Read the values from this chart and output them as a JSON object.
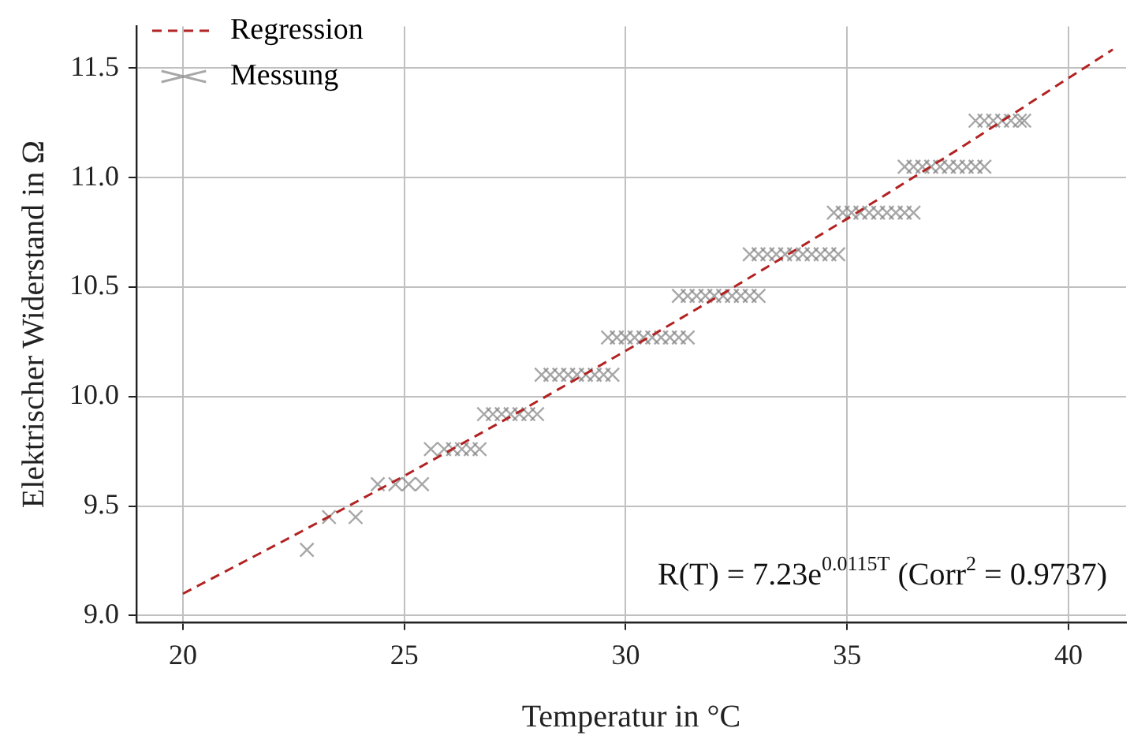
{
  "chart_data": {
    "type": "scatter",
    "xlabel": "Temperatur in °C",
    "ylabel": "Elektrischer Widerstand in Ω",
    "xlim": [
      18.95,
      41.3
    ],
    "ylim": [
      8.97,
      11.69
    ],
    "xticks": [
      20,
      25,
      30,
      35,
      40
    ],
    "yticks": [
      {
        "value": 9,
        "label": "9.0"
      },
      9.5,
      {
        "value": 10,
        "label": "10.0"
      },
      10.5,
      {
        "value": 11,
        "label": "11.0"
      },
      11.5
    ],
    "grid": true,
    "legend": "top left",
    "annotations": [
      "R(T) = 7.23e$^{0.0115T}$ (Corr$^{2}$ = 0.9737)"
    ],
    "series": [
      {
        "name": "Regression",
        "type": "line",
        "color": "#b22222",
        "line_style": "dashed",
        "marker": "none",
        "x": [
          20,
          22.5,
          25,
          27.5,
          30,
          32.5,
          35,
          37.5,
          41
        ],
        "values": [
          9.1,
          9.365,
          9.638,
          9.92,
          10.209,
          10.507,
          10.812,
          11.128,
          11.585
        ]
      },
      {
        "name": "Messung",
        "color": "#808080",
        "marker": "cross",
        "x": [
          22.8,
          23.3,
          23.9,
          24.4,
          24.8,
          25.1,
          25.4,
          25.6,
          25.9,
          26.1,
          26.3,
          26.5,
          26.7,
          26.8,
          27.0,
          27.2,
          27.4,
          27.6,
          27.8,
          28.0,
          28.1,
          28.3,
          28.5,
          28.7,
          28.9,
          29.1,
          29.3,
          29.5,
          29.7,
          29.6,
          29.8,
          30.0,
          30.2,
          30.4,
          30.6,
          30.8,
          31.0,
          31.2,
          31.4,
          31.2,
          31.4,
          31.6,
          31.8,
          32.0,
          32.2,
          32.4,
          32.6,
          32.8,
          33.0,
          32.8,
          33.0,
          33.2,
          33.4,
          33.6,
          33.8,
          34.0,
          34.2,
          34.4,
          34.6,
          34.8,
          34.7,
          34.9,
          35.1,
          35.3,
          35.5,
          35.7,
          35.9,
          36.1,
          36.3,
          36.5,
          36.3,
          36.5,
          36.7,
          36.9,
          37.1,
          37.3,
          37.5,
          37.7,
          37.9,
          38.1,
          37.9,
          38.1,
          38.3,
          38.5,
          38.7,
          38.9,
          39.0
        ],
        "values": [
          9.3,
          9.45,
          9.45,
          9.6,
          9.6,
          9.6,
          9.6,
          9.76,
          9.76,
          9.76,
          9.76,
          9.76,
          9.76,
          9.92,
          9.92,
          9.92,
          9.92,
          9.92,
          9.92,
          9.92,
          10.1,
          10.1,
          10.1,
          10.1,
          10.1,
          10.1,
          10.1,
          10.1,
          10.1,
          10.27,
          10.27,
          10.27,
          10.27,
          10.27,
          10.27,
          10.27,
          10.27,
          10.27,
          10.27,
          10.46,
          10.46,
          10.46,
          10.46,
          10.46,
          10.46,
          10.46,
          10.46,
          10.46,
          10.46,
          10.65,
          10.65,
          10.65,
          10.65,
          10.65,
          10.65,
          10.65,
          10.65,
          10.65,
          10.65,
          10.65,
          10.84,
          10.84,
          10.84,
          10.84,
          10.84,
          10.84,
          10.84,
          10.84,
          10.84,
          10.84,
          11.05,
          11.05,
          11.05,
          11.05,
          11.05,
          11.05,
          11.05,
          11.05,
          11.05,
          11.05,
          11.26,
          11.26,
          11.26,
          11.26,
          11.26,
          11.26,
          11.26
        ]
      }
    ]
  }
}
